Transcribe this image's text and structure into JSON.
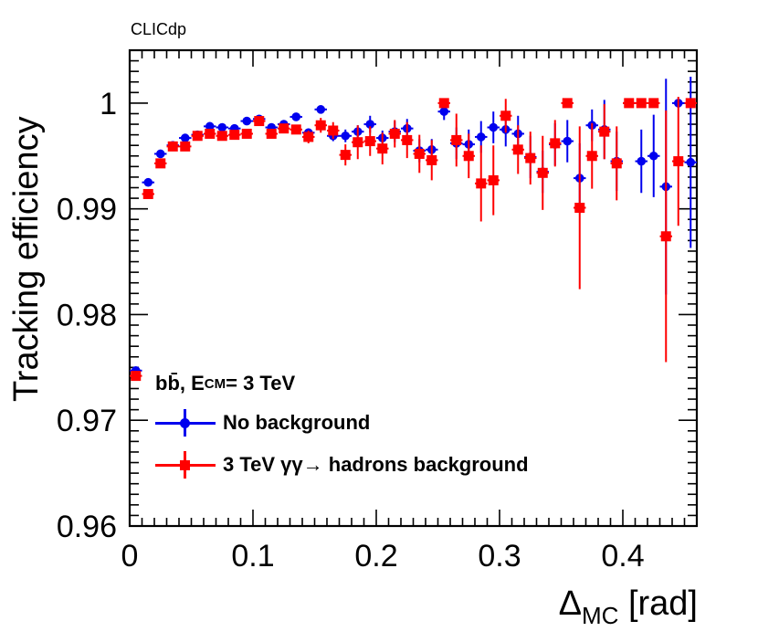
{
  "experiment_label": "CLICdp",
  "legend": {
    "title_main": "bb̄, E",
    "title_sub": "CM",
    "title_rest": " =  3 TeV"
  },
  "chart_data": {
    "type": "scatter",
    "title": "",
    "xlabel_main": "Δ",
    "xlabel_sub": "MC",
    "xlabel_rest": " [rad]",
    "ylabel": "Tracking efficiency",
    "xlim": [
      0,
      0.46
    ],
    "ylim": [
      0.96,
      1.005
    ],
    "x_ticks": [
      0,
      0.1,
      0.2,
      0.3,
      0.4
    ],
    "x_tick_labels": [
      "0",
      "0.1",
      "0.2",
      "0.3",
      "0.4"
    ],
    "y_ticks": [
      0.96,
      0.97,
      0.98,
      0.99,
      1.0
    ],
    "y_tick_labels": [
      "0.96",
      "0.97",
      "0.98",
      "0.99",
      "1"
    ],
    "bin_width": 0.01,
    "x": [
      0.005,
      0.015,
      0.025,
      0.035,
      0.045,
      0.055,
      0.065,
      0.075,
      0.085,
      0.095,
      0.105,
      0.115,
      0.125,
      0.135,
      0.145,
      0.155,
      0.165,
      0.175,
      0.185,
      0.195,
      0.205,
      0.215,
      0.225,
      0.235,
      0.245,
      0.255,
      0.265,
      0.275,
      0.285,
      0.295,
      0.305,
      0.315,
      0.325,
      0.335,
      0.345,
      0.355,
      0.365,
      0.375,
      0.385,
      0.395,
      0.405,
      0.415,
      0.425,
      0.435,
      0.445,
      0.455
    ],
    "series": [
      {
        "name": "No background",
        "color": "#0000ee",
        "marker": "circle",
        "values": [
          0.9747,
          0.9925,
          0.9952,
          0.996,
          0.9967,
          0.997,
          0.9978,
          0.9977,
          0.9976,
          0.9983,
          0.9985,
          0.9977,
          0.998,
          0.9987,
          0.9972,
          0.9994,
          0.9969,
          0.9969,
          0.9973,
          0.998,
          0.9967,
          0.9973,
          0.9976,
          0.9955,
          0.9956,
          0.9992,
          0.9962,
          0.9961,
          0.9968,
          0.9977,
          0.9975,
          0.9971,
          0.9949,
          0.9935,
          0.9961,
          0.9964,
          0.9929,
          0.9979,
          0.9975,
          0.9945,
          1.0,
          0.9945,
          0.995,
          0.9921,
          1.0,
          0.9944
        ],
        "errors": [
          0.0003,
          0.0003,
          0.0003,
          0.0002,
          0.0002,
          0.0002,
          0.0002,
          0.0002,
          0.0002,
          0.0002,
          0.0002,
          0.0003,
          0.0003,
          0.0003,
          0.0004,
          0.0003,
          0.0005,
          0.0006,
          0.0006,
          0.0008,
          0.0007,
          0.001,
          0.0009,
          0.0011,
          0.001,
          0.0008,
          0.0015,
          0.0014,
          0.0015,
          0.0015,
          0.0016,
          0.0017,
          0.002,
          0.002,
          0.002,
          0.002,
          0.0033,
          0.0015,
          0.0028,
          0.0028,
          0.0001,
          0.003,
          0.0039,
          0.0102,
          0.0001,
          0.0081
        ]
      },
      {
        "name": "3 TeV  γγ→ hadrons background",
        "color": "#ff0000",
        "marker": "square",
        "values": [
          0.9742,
          0.9914,
          0.9943,
          0.9959,
          0.9959,
          0.9969,
          0.9971,
          0.9969,
          0.997,
          0.9971,
          0.9983,
          0.9971,
          0.9976,
          0.9975,
          0.9968,
          0.9979,
          0.9974,
          0.9951,
          0.9963,
          0.9964,
          0.9957,
          0.9971,
          0.9965,
          0.9952,
          0.9946,
          1.0,
          0.9965,
          0.995,
          0.9924,
          0.9927,
          0.9988,
          0.9956,
          0.9948,
          0.9934,
          0.9962,
          1.0,
          0.9901,
          0.995,
          0.9973,
          0.9943,
          1.0,
          1.0,
          1.0,
          0.9874,
          0.9945,
          1.0
        ],
        "errors": [
          0.0003,
          0.0003,
          0.0003,
          0.0002,
          0.0002,
          0.0002,
          0.0002,
          0.0003,
          0.0003,
          0.0003,
          0.0003,
          0.0004,
          0.0004,
          0.0004,
          0.0006,
          0.0007,
          0.0008,
          0.001,
          0.0016,
          0.0014,
          0.0015,
          0.0013,
          0.0017,
          0.0018,
          0.0019,
          0.0004,
          0.0025,
          0.0021,
          0.0036,
          0.0033,
          0.0016,
          0.0023,
          0.0025,
          0.0035,
          0.0022,
          0.0004,
          0.0077,
          0.0031,
          0.0026,
          0.0035,
          0.0004,
          0.0004,
          0.0004,
          0.0119,
          0.0061,
          0.0004
        ]
      }
    ]
  }
}
